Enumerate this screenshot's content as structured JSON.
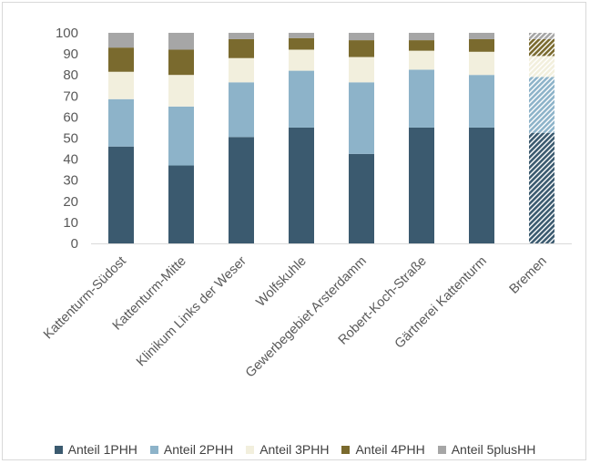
{
  "chart_data": {
    "type": "bar",
    "stacked": true,
    "title": "",
    "xlabel": "",
    "ylabel": "",
    "ylim": [
      0,
      100
    ],
    "yticks": [
      0,
      10,
      20,
      30,
      40,
      50,
      60,
      70,
      80,
      90,
      100
    ],
    "grid": false,
    "legend_position": "bottom",
    "categories": [
      "Kattenturm-Südost",
      "Kattenturm-Mitte",
      "Klinikum Links der Weser",
      "Wolfskuhle",
      "Gewerbegebiet Arsterdamm",
      "Robert-Koch-Straße",
      "Gärtnerei Kattenturm",
      "Bremen"
    ],
    "hatched_categories": [
      "Bremen"
    ],
    "series": [
      {
        "name": "Anteil 1PHH",
        "color": "#3b5a6f",
        "values": [
          46,
          37,
          50.5,
          55,
          42.5,
          55,
          55,
          52.5
        ]
      },
      {
        "name": "Anteil 2PHH",
        "color": "#8db3c9",
        "values": [
          22.5,
          28,
          26,
          27,
          34,
          27.5,
          25,
          26.5
        ]
      },
      {
        "name": "Anteil 3PHH",
        "color": "#f2efdd",
        "values": [
          13,
          15,
          11.5,
          10,
          12,
          9,
          11,
          10
        ]
      },
      {
        "name": "Anteil 4PHH",
        "color": "#7a6a2e",
        "values": [
          11.5,
          12,
          9,
          5.5,
          8,
          5,
          6,
          8
        ]
      },
      {
        "name": "Anteil 5plusHH",
        "color": "#a6a6a6",
        "values": [
          7,
          8,
          3,
          2.5,
          3.5,
          3.5,
          3,
          3
        ]
      }
    ]
  }
}
